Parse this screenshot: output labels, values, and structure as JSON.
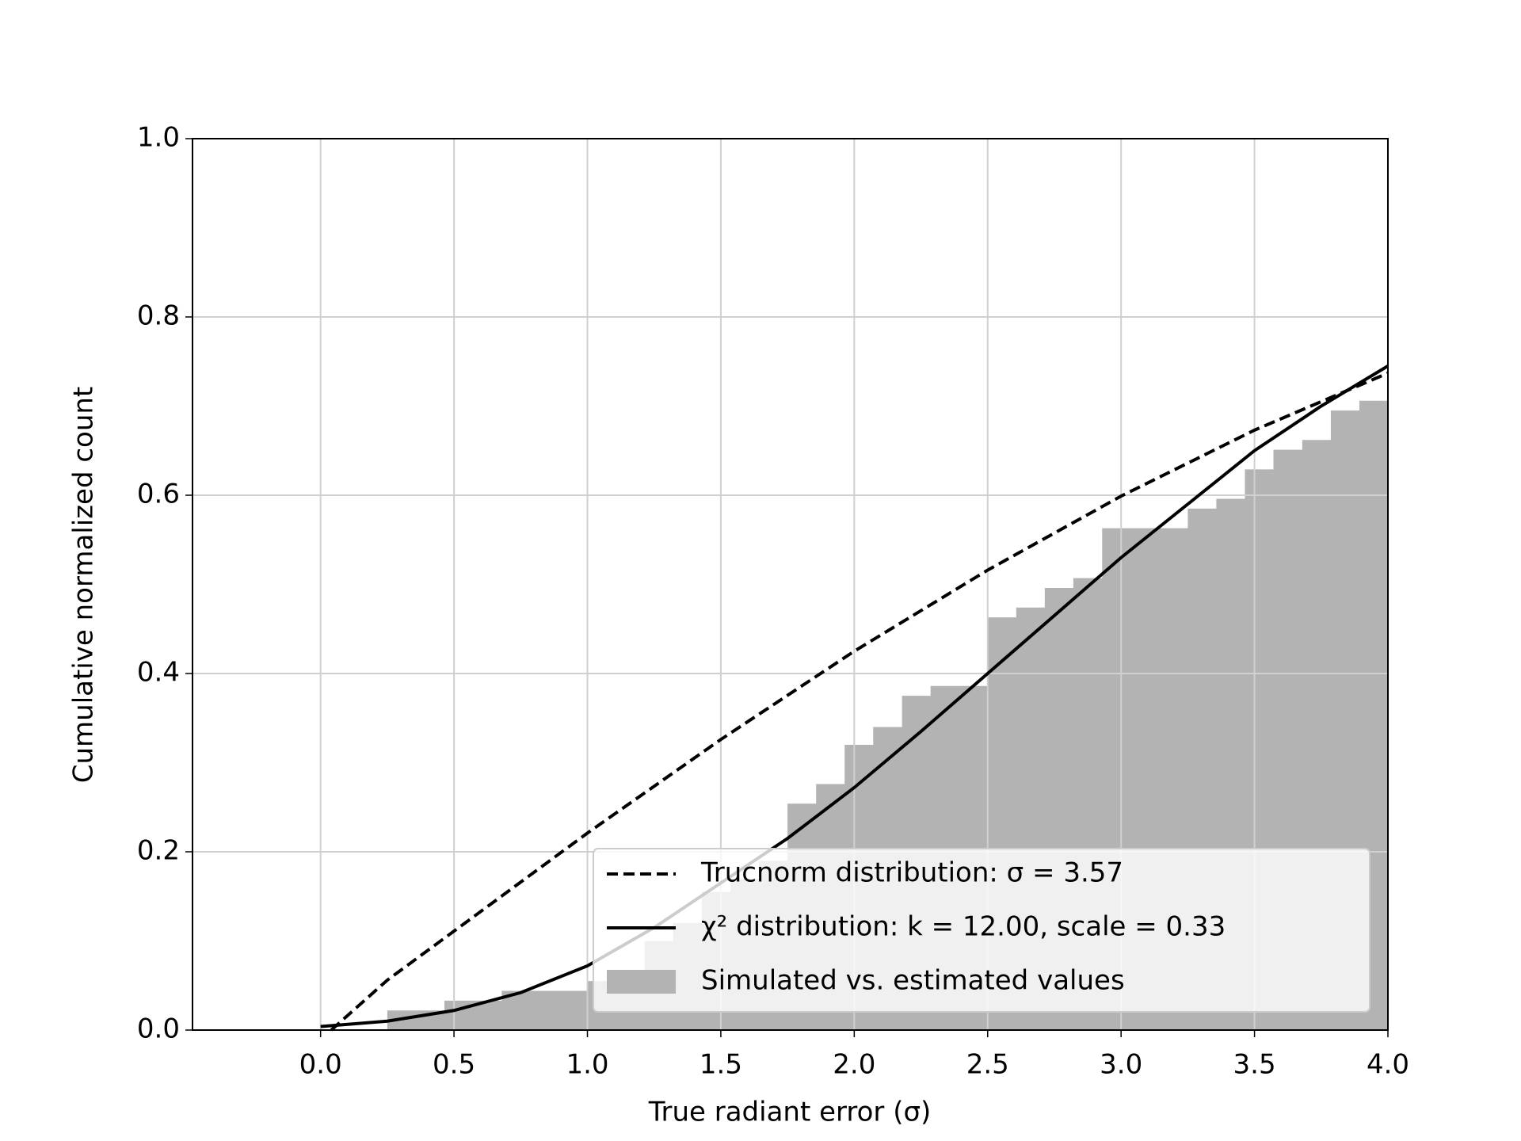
{
  "chart_data": {
    "type": "histogram",
    "xlabel": "True radiant error (σ)",
    "ylabel": "Cumulative normalized count",
    "label": "Simulated vs. estimated values",
    "color": "#b3b3b3",
    "bins": [
      0.25,
      0.357,
      0.464,
      0.571,
      0.679,
      0.786,
      0.893,
      1.0,
      1.107,
      1.214,
      1.321,
      1.429,
      1.536,
      1.643,
      1.75,
      1.857,
      1.964,
      2.071,
      2.179,
      2.286,
      2.393,
      2.5,
      2.607,
      2.714,
      2.821,
      2.929,
      3.036,
      3.143,
      3.25,
      3.357,
      3.464,
      3.571,
      3.679,
      3.786,
      3.893,
      4.0
    ],
    "values": [
      0.022,
      0.022,
      0.033,
      0.033,
      0.044,
      0.044,
      0.044,
      0.055,
      0.066,
      0.1,
      0.12,
      0.155,
      0.17,
      0.19,
      0.254,
      0.276,
      0.32,
      0.34,
      0.375,
      0.386,
      0.386,
      0.463,
      0.474,
      0.496,
      0.507,
      0.563,
      0.563,
      0.563,
      0.585,
      0.596,
      0.629,
      0.651,
      0.662,
      0.695,
      0.706
    ],
    "series": [
      {
        "name": "Trucnorm distribution: σ = 3.57",
        "color": "#000000",
        "dashed": true,
        "x": [
          0.04,
          0.25,
          0.5,
          0.75,
          1.0,
          1.5,
          2.0,
          2.5,
          3.0,
          3.5,
          4.0
        ],
        "values": [
          0,
          0.056,
          0.111,
          0.166,
          0.221,
          0.326,
          0.425,
          0.516,
          0.599,
          0.673,
          0.737
        ]
      },
      {
        "name": "χ² distribution: k = 12.00, scale = 0.33",
        "color": "#000000",
        "dashed": false,
        "x": [
          0,
          0.25,
          0.5,
          0.75,
          1.0,
          1.25,
          1.5,
          1.75,
          2.0,
          2.25,
          2.5,
          2.75,
          3.0,
          3.25,
          3.5,
          3.75,
          4.0
        ],
        "values": [
          0.004,
          0.01,
          0.022,
          0.042,
          0.072,
          0.115,
          0.165,
          0.215,
          0.272,
          0.335,
          0.4,
          0.465,
          0.53,
          0.59,
          0.65,
          0.7,
          0.745
        ]
      }
    ],
    "xlim": [
      -0.48,
      4.0
    ],
    "ylim": [
      0,
      1
    ],
    "xticks": [
      {
        "value": 0,
        "label": "0.0"
      },
      0.5,
      {
        "value": 1,
        "label": "1.0"
      },
      1.5,
      {
        "value": 2,
        "label": "2.0"
      },
      2.5,
      {
        "value": 3,
        "label": "3.0"
      },
      3.5,
      {
        "value": 4,
        "label": "4.0"
      }
    ],
    "yticks": [
      {
        "value": 0,
        "label": "0.0"
      },
      0.2,
      0.4,
      0.6,
      0.8,
      {
        "value": 1,
        "label": "1.0"
      }
    ],
    "grid": true,
    "legend": "lower right"
  }
}
